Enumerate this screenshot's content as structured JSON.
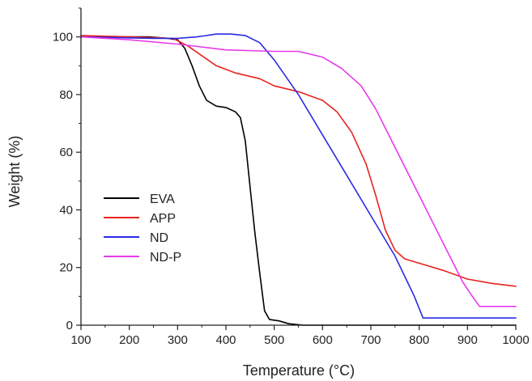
{
  "chart_data": {
    "type": "line",
    "title": "",
    "xlabel": "Temperature (°C)",
    "ylabel": "Weight (%)",
    "xlim": [
      100,
      1000
    ],
    "ylim": [
      0,
      110
    ],
    "x_ticks": [
      "100",
      "200",
      "300",
      "400",
      "500",
      "600",
      "700",
      "800",
      "900",
      "1000"
    ],
    "y_ticks": [
      "0",
      "20",
      "40",
      "60",
      "80",
      "100"
    ],
    "grid": false,
    "legend_position": "bottom-left",
    "series": [
      {
        "name": "EVA",
        "color": "#000000",
        "points": [
          [
            100,
            100
          ],
          [
            150,
            100
          ],
          [
            200,
            100
          ],
          [
            240,
            100
          ],
          [
            280,
            99.5
          ],
          [
            300,
            99
          ],
          [
            315,
            96
          ],
          [
            330,
            90
          ],
          [
            345,
            83
          ],
          [
            360,
            78
          ],
          [
            380,
            76
          ],
          [
            400,
            75.5
          ],
          [
            420,
            74
          ],
          [
            430,
            72
          ],
          [
            440,
            64
          ],
          [
            450,
            48
          ],
          [
            460,
            32
          ],
          [
            470,
            18
          ],
          [
            480,
            5
          ],
          [
            490,
            2
          ],
          [
            510,
            1.5
          ],
          [
            530,
            0.5
          ],
          [
            560,
            0
          ],
          [
            1000,
            0
          ]
        ]
      },
      {
        "name": "APP",
        "color": "#e8231f",
        "points": [
          [
            100,
            100.5
          ],
          [
            200,
            100
          ],
          [
            290,
            99.5
          ],
          [
            320,
            97
          ],
          [
            350,
            93.5
          ],
          [
            380,
            90
          ],
          [
            420,
            87.5
          ],
          [
            470,
            85.5
          ],
          [
            500,
            83
          ],
          [
            550,
            81
          ],
          [
            600,
            78
          ],
          [
            630,
            74
          ],
          [
            660,
            67
          ],
          [
            690,
            56
          ],
          [
            710,
            45
          ],
          [
            730,
            33
          ],
          [
            750,
            26
          ],
          [
            770,
            23
          ],
          [
            800,
            21.5
          ],
          [
            850,
            19
          ],
          [
            900,
            16
          ],
          [
            950,
            14.5
          ],
          [
            1000,
            13.5
          ]
        ]
      },
      {
        "name": "ND",
        "color": "#2b2be6",
        "points": [
          [
            100,
            100
          ],
          [
            250,
            99.5
          ],
          [
            300,
            99.5
          ],
          [
            340,
            100
          ],
          [
            380,
            101
          ],
          [
            410,
            101
          ],
          [
            440,
            100.5
          ],
          [
            470,
            98
          ],
          [
            500,
            92
          ],
          [
            550,
            80
          ],
          [
            600,
            66
          ],
          [
            650,
            52
          ],
          [
            700,
            38
          ],
          [
            750,
            24
          ],
          [
            790,
            10
          ],
          [
            808,
            2.5
          ],
          [
            900,
            2.5
          ],
          [
            1000,
            2.5
          ]
        ]
      },
      {
        "name": "ND-P",
        "color": "#e83be8",
        "points": [
          [
            100,
            100
          ],
          [
            200,
            99
          ],
          [
            300,
            97.5
          ],
          [
            400,
            95.5
          ],
          [
            500,
            95
          ],
          [
            550,
            95
          ],
          [
            600,
            93
          ],
          [
            640,
            89
          ],
          [
            680,
            83
          ],
          [
            710,
            75
          ],
          [
            740,
            65
          ],
          [
            770,
            55
          ],
          [
            800,
            45
          ],
          [
            830,
            35
          ],
          [
            860,
            25
          ],
          [
            890,
            15
          ],
          [
            910,
            10
          ],
          [
            925,
            6.5
          ],
          [
            1000,
            6.5
          ]
        ]
      }
    ]
  }
}
